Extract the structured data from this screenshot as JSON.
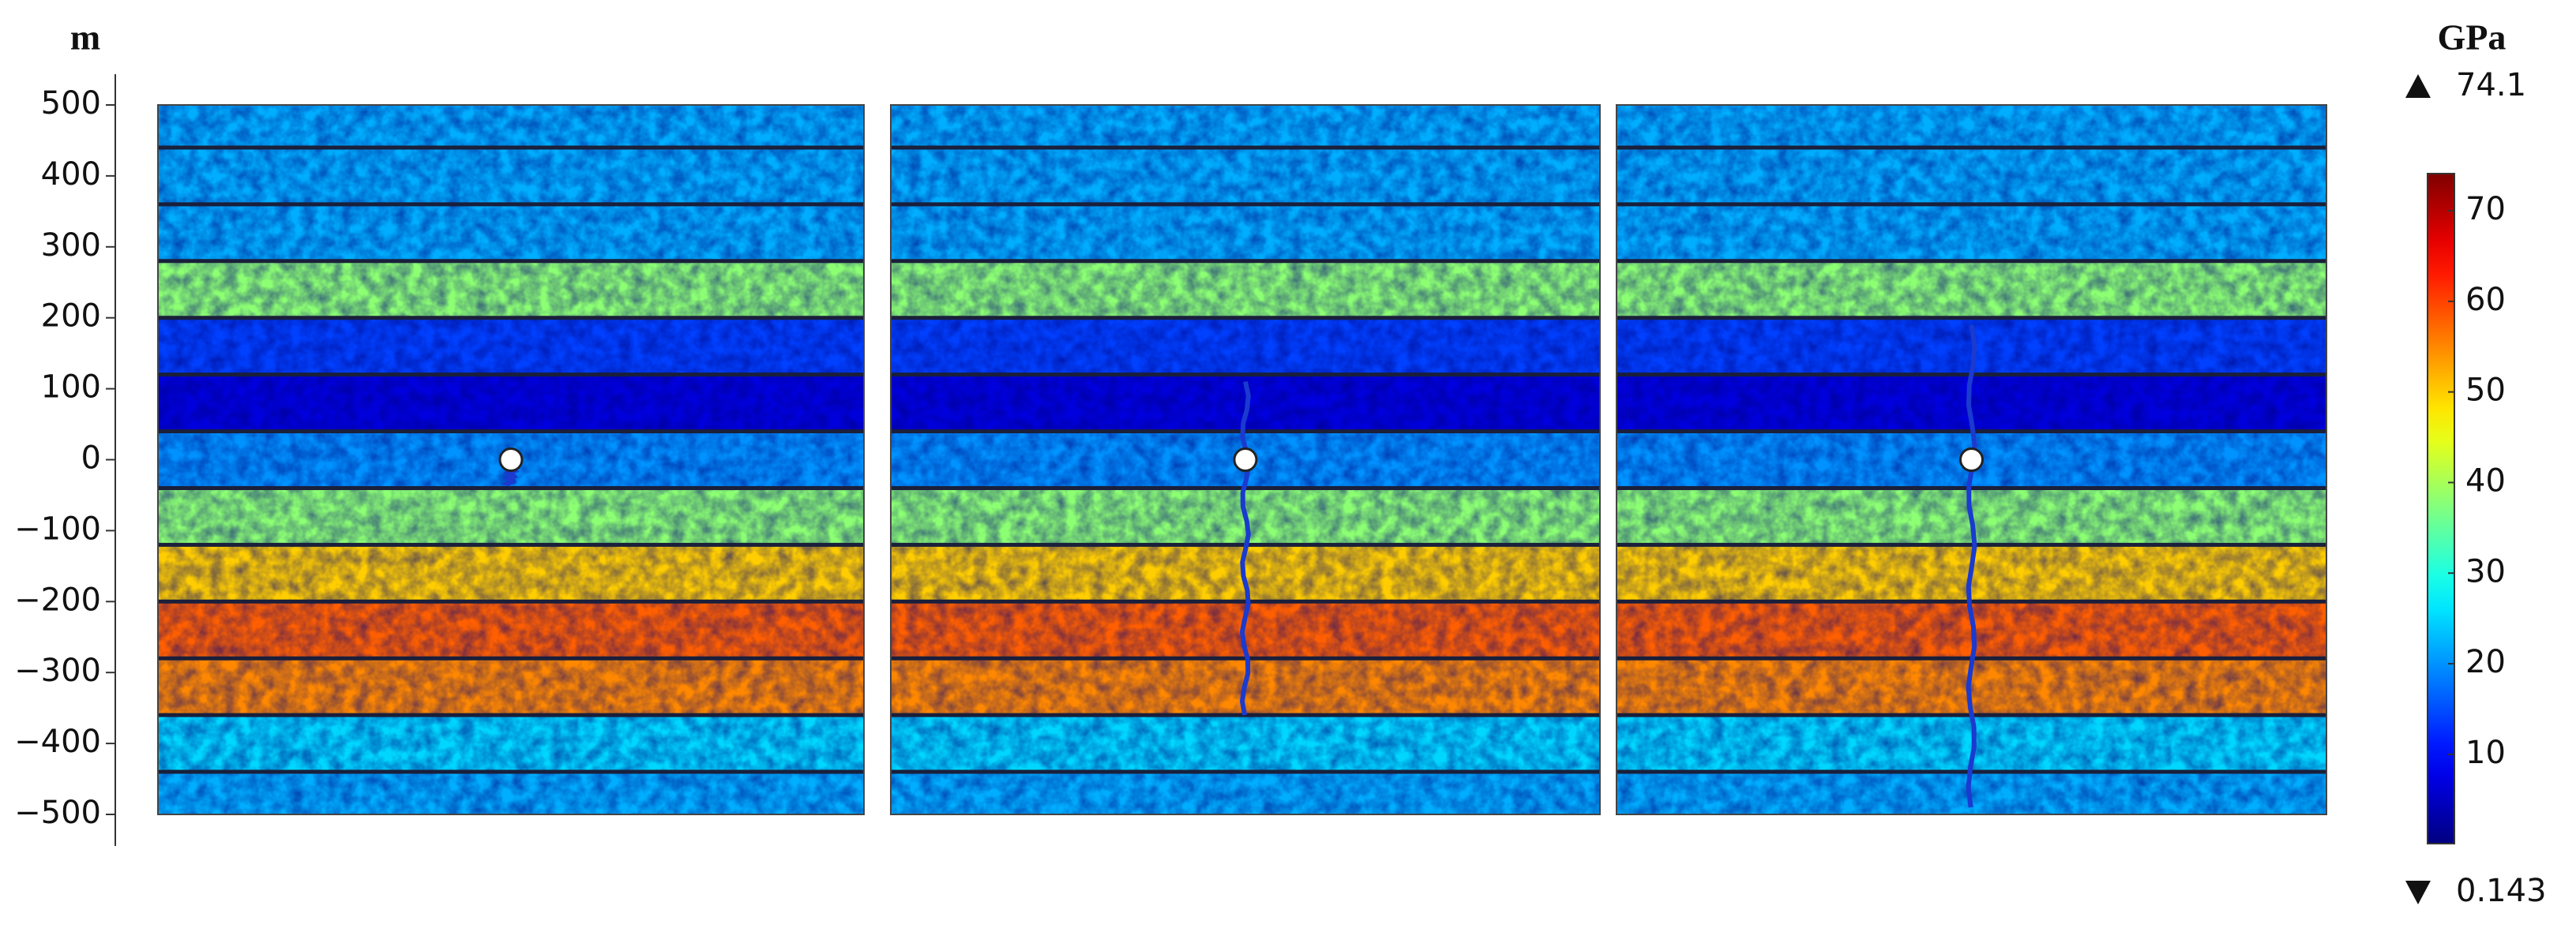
{
  "chart_data": {
    "type": "heatmap",
    "y_label": "m",
    "ylim": [
      -500,
      500
    ],
    "yticks": [
      500,
      400,
      300,
      200,
      100,
      0,
      {
        "value": -100,
        "label": "−100"
      },
      {
        "value": -200,
        "label": "−200"
      },
      {
        "value": -300,
        "label": "−300"
      },
      {
        "value": -400,
        "label": "−400"
      },
      {
        "value": -500,
        "label": "−500"
      }
    ],
    "layer_boundaries": [
      500,
      440,
      360,
      280,
      200,
      120,
      40,
      -40,
      -120,
      -200,
      -280,
      -360,
      -440,
      -500
    ],
    "layer_values": [
      22,
      22,
      22,
      38,
      14,
      7,
      20,
      38,
      50,
      58,
      55,
      25,
      22
    ],
    "hole_y": 0,
    "cracks": [
      [
        0,
        -35
      ],
      [
        110,
        -360
      ],
      [
        190,
        -490
      ]
    ],
    "colorbar": {
      "title": "GPa",
      "max": 74.1,
      "min": 0.143,
      "lim": [
        0.143,
        74.1
      ],
      "ticks": [
        10,
        20,
        30,
        40,
        50,
        60,
        70
      ],
      "colormap": "jet"
    }
  }
}
